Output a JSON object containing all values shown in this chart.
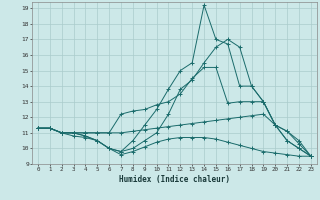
{
  "xlabel": "Humidex (Indice chaleur)",
  "bg_color": "#cce8e8",
  "grid_color": "#aacccc",
  "line_color": "#1a6b6b",
  "xlim": [
    -0.5,
    23.5
  ],
  "ylim": [
    9,
    19.4
  ],
  "xticks": [
    0,
    1,
    2,
    3,
    4,
    5,
    6,
    7,
    8,
    9,
    10,
    11,
    12,
    13,
    14,
    15,
    16,
    17,
    18,
    19,
    20,
    21,
    22,
    23
  ],
  "yticks": [
    9,
    10,
    11,
    12,
    13,
    14,
    15,
    16,
    17,
    18,
    19
  ],
  "series": [
    [
      11.3,
      11.3,
      11.0,
      10.8,
      10.7,
      10.5,
      10.0,
      9.6,
      9.8,
      10.1,
      10.4,
      10.6,
      10.7,
      10.7,
      10.7,
      10.6,
      10.4,
      10.2,
      10.0,
      9.8,
      9.7,
      9.6,
      9.5,
      9.5
    ],
    [
      11.3,
      11.3,
      11.0,
      11.0,
      11.0,
      11.0,
      11.0,
      11.0,
      11.1,
      11.2,
      11.3,
      11.4,
      11.5,
      11.6,
      11.7,
      11.8,
      11.9,
      12.0,
      12.1,
      12.2,
      11.5,
      11.1,
      10.3,
      9.5
    ],
    [
      11.3,
      11.3,
      11.0,
      11.0,
      11.0,
      11.0,
      11.0,
      12.2,
      12.4,
      12.5,
      12.8,
      13.0,
      13.5,
      14.5,
      15.2,
      15.2,
      12.9,
      13.0,
      13.0,
      13.0,
      11.5,
      11.1,
      10.5,
      9.5
    ],
    [
      11.3,
      11.3,
      11.0,
      11.0,
      10.8,
      10.5,
      10.0,
      9.8,
      10.0,
      10.5,
      11.0,
      12.2,
      13.8,
      14.4,
      15.5,
      16.5,
      17.0,
      16.5,
      14.0,
      13.0,
      11.5,
      10.5,
      10.0,
      9.5
    ],
    [
      11.3,
      11.3,
      11.0,
      11.0,
      10.8,
      10.5,
      10.0,
      9.8,
      10.5,
      11.5,
      12.5,
      13.8,
      15.0,
      15.5,
      19.2,
      17.0,
      16.7,
      14.0,
      14.0,
      13.0,
      11.5,
      10.5,
      10.0,
      9.5
    ]
  ]
}
